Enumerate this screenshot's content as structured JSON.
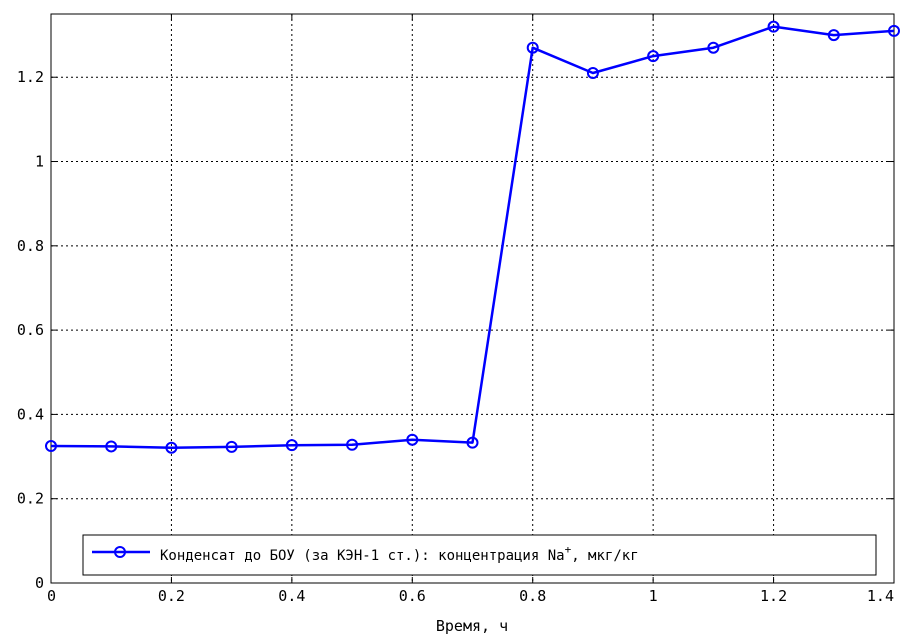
{
  "chart_data": {
    "type": "line",
    "title": "",
    "xlabel": "Время, ч",
    "ylabel": "",
    "xlim": [
      0,
      1.4
    ],
    "ylim": [
      0,
      1.35
    ],
    "xticks": [
      0,
      0.2,
      0.4,
      0.6,
      0.8,
      1,
      1.2,
      1.4
    ],
    "xtick_labels": [
      "0",
      "0.2",
      "0.4",
      "0.6",
      "0.8",
      "1",
      "1.2",
      "1.4"
    ],
    "yticks": [
      0,
      0.2,
      0.4,
      0.6,
      0.8,
      1,
      1.2
    ],
    "ytick_labels": [
      "0",
      "0.2",
      "0.4",
      "0.6",
      "0.8",
      "1",
      "1.2"
    ],
    "grid": true,
    "legend_position": "bottom",
    "series": [
      {
        "name": "Конденсат до БОУ (за КЭН-1 ст.): концентрация Na",
        "name_superscript": "+",
        "name_suffix": ", мкг/кг",
        "color": "#0000ff",
        "marker": "circle",
        "x": [
          0,
          0.1,
          0.2,
          0.3,
          0.4,
          0.5,
          0.6,
          0.7,
          0.8,
          0.9,
          1.0,
          1.1,
          1.2,
          1.3,
          1.4
        ],
        "y": [
          0.325,
          0.324,
          0.321,
          0.323,
          0.327,
          0.328,
          0.34,
          0.333,
          1.27,
          1.21,
          1.25,
          1.27,
          1.32,
          1.3,
          1.31
        ]
      }
    ]
  }
}
